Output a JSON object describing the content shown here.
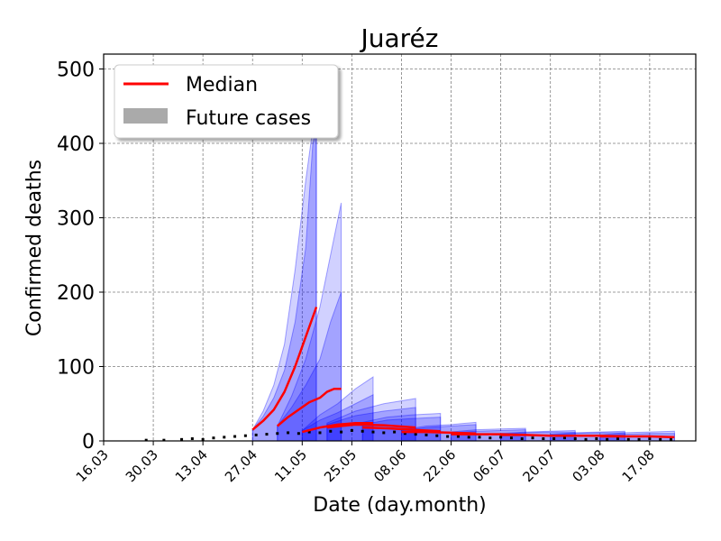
{
  "chart_data": {
    "type": "line",
    "title": "Juaréz",
    "xlabel": "Date (day.month)",
    "ylabel": "Confirmed deaths",
    "ylim": [
      0,
      520
    ],
    "xlim": [
      "2020-03-16",
      "2020-08-30"
    ],
    "x_ticks": [
      {
        "date": "2020-03-16",
        "label": "16.03"
      },
      {
        "date": "2020-03-30",
        "label": "30.03"
      },
      {
        "date": "2020-04-13",
        "label": "13.04"
      },
      {
        "date": "2020-04-27",
        "label": "27.04"
      },
      {
        "date": "2020-05-11",
        "label": "11.05"
      },
      {
        "date": "2020-05-25",
        "label": "25.05"
      },
      {
        "date": "2020-06-08",
        "label": "08.06"
      },
      {
        "date": "2020-06-22",
        "label": "22.06"
      },
      {
        "date": "2020-07-06",
        "label": "06.07"
      },
      {
        "date": "2020-07-20",
        "label": "20.07"
      },
      {
        "date": "2020-08-03",
        "label": "03.08"
      },
      {
        "date": "2020-08-17",
        "label": "17.08"
      }
    ],
    "y_ticks": [
      0,
      100,
      200,
      300,
      400,
      500
    ],
    "grid": true,
    "legend": {
      "position": "top-left",
      "entries": [
        {
          "label": "Median",
          "color": "#ff0000",
          "kind": "line"
        },
        {
          "label": "Future cases",
          "color": "#aaaaaa",
          "kind": "patch"
        }
      ]
    },
    "colors": {
      "median": "#ff0000",
      "band": "#0000ff",
      "observed": "#000000"
    },
    "forecasts": [
      {
        "start": "2020-04-27",
        "end": "2020-05-15",
        "median": [
          [
            0,
            15
          ],
          [
            3,
            27
          ],
          [
            6,
            42
          ],
          [
            9,
            66
          ],
          [
            12,
            100
          ],
          [
            15,
            140
          ],
          [
            18,
            180
          ]
        ],
        "inner": [
          [
            0,
            15
          ],
          [
            3,
            33
          ],
          [
            6,
            58
          ],
          [
            9,
            95
          ],
          [
            12,
            160
          ],
          [
            15,
            260
          ],
          [
            17,
            400
          ],
          [
            18,
            420
          ]
        ],
        "outer": [
          [
            0,
            15
          ],
          [
            3,
            40
          ],
          [
            6,
            75
          ],
          [
            9,
            130
          ],
          [
            12,
            230
          ],
          [
            15,
            350
          ],
          [
            17,
            420
          ],
          [
            18,
            420
          ]
        ]
      },
      {
        "start": "2020-05-04",
        "end": "2020-05-22",
        "median": [
          [
            0,
            20
          ],
          [
            3,
            32
          ],
          [
            6,
            42
          ],
          [
            9,
            52
          ],
          [
            12,
            58
          ],
          [
            14,
            66
          ],
          [
            16,
            70
          ],
          [
            18,
            70
          ]
        ],
        "inner": [
          [
            0,
            20
          ],
          [
            4,
            45
          ],
          [
            8,
            75
          ],
          [
            12,
            110
          ],
          [
            15,
            160
          ],
          [
            18,
            200
          ]
        ],
        "outer": [
          [
            0,
            20
          ],
          [
            4,
            60
          ],
          [
            8,
            110
          ],
          [
            12,
            180
          ],
          [
            15,
            250
          ],
          [
            18,
            320
          ]
        ]
      },
      {
        "start": "2020-05-11",
        "end": "2020-05-31",
        "median": [
          [
            0,
            12
          ],
          [
            5,
            18
          ],
          [
            10,
            22
          ],
          [
            15,
            24
          ],
          [
            20,
            24
          ]
        ],
        "inner": [
          [
            0,
            14
          ],
          [
            5,
            28
          ],
          [
            10,
            38
          ],
          [
            15,
            50
          ],
          [
            20,
            62
          ]
        ],
        "outer": [
          [
            0,
            14
          ],
          [
            5,
            35
          ],
          [
            10,
            50
          ],
          [
            15,
            70
          ],
          [
            20,
            86
          ]
        ]
      },
      {
        "start": "2020-05-18",
        "end": "2020-06-12",
        "median": [
          [
            0,
            18
          ],
          [
            8,
            22
          ],
          [
            16,
            21
          ],
          [
            25,
            18
          ]
        ],
        "inner": [
          [
            0,
            22
          ],
          [
            8,
            34
          ],
          [
            16,
            40
          ],
          [
            25,
            45
          ]
        ],
        "outer": [
          [
            0,
            24
          ],
          [
            8,
            40
          ],
          [
            16,
            50
          ],
          [
            25,
            57
          ]
        ]
      },
      {
        "start": "2020-05-28",
        "end": "2020-06-19",
        "median": [
          [
            0,
            18
          ],
          [
            7,
            17
          ],
          [
            14,
            15
          ],
          [
            22,
            13
          ]
        ],
        "inner": [
          [
            0,
            22
          ],
          [
            7,
            28
          ],
          [
            14,
            30
          ],
          [
            22,
            32
          ]
        ],
        "outer": [
          [
            0,
            25
          ],
          [
            7,
            32
          ],
          [
            14,
            35
          ],
          [
            22,
            37
          ]
        ]
      },
      {
        "start": "2020-06-08",
        "end": "2020-06-29",
        "median": [
          [
            0,
            12
          ],
          [
            7,
            12
          ],
          [
            14,
            11
          ],
          [
            21,
            10
          ]
        ],
        "inner": [
          [
            0,
            14
          ],
          [
            7,
            18
          ],
          [
            14,
            20
          ],
          [
            21,
            22
          ]
        ],
        "outer": [
          [
            0,
            15
          ],
          [
            7,
            20
          ],
          [
            14,
            22
          ],
          [
            21,
            25
          ]
        ]
      },
      {
        "start": "2020-06-22",
        "end": "2020-07-13",
        "median": [
          [
            0,
            9
          ],
          [
            7,
            9
          ],
          [
            14,
            9
          ],
          [
            21,
            8
          ]
        ],
        "inner": [
          [
            0,
            11
          ],
          [
            7,
            13
          ],
          [
            14,
            14
          ],
          [
            21,
            15
          ]
        ],
        "outer": [
          [
            0,
            12
          ],
          [
            7,
            15
          ],
          [
            14,
            16
          ],
          [
            21,
            17
          ]
        ]
      },
      {
        "start": "2020-07-06",
        "end": "2020-07-27",
        "median": [
          [
            0,
            8
          ],
          [
            7,
            8
          ],
          [
            14,
            7
          ],
          [
            21,
            7
          ]
        ],
        "inner": [
          [
            0,
            9
          ],
          [
            7,
            11
          ],
          [
            14,
            12
          ],
          [
            21,
            12
          ]
        ],
        "outer": [
          [
            0,
            10
          ],
          [
            7,
            12
          ],
          [
            14,
            13
          ],
          [
            21,
            14
          ]
        ]
      },
      {
        "start": "2020-07-20",
        "end": "2020-08-10",
        "median": [
          [
            0,
            7
          ],
          [
            7,
            7
          ],
          [
            14,
            7
          ],
          [
            21,
            6
          ]
        ],
        "inner": [
          [
            0,
            8
          ],
          [
            7,
            10
          ],
          [
            14,
            11
          ],
          [
            21,
            11
          ]
        ],
        "outer": [
          [
            0,
            9
          ],
          [
            7,
            11
          ],
          [
            14,
            12
          ],
          [
            21,
            13
          ]
        ]
      },
      {
        "start": "2020-08-03",
        "end": "2020-08-24",
        "median": [
          [
            0,
            6
          ],
          [
            7,
            6
          ],
          [
            14,
            6
          ],
          [
            21,
            5
          ]
        ],
        "inner": [
          [
            0,
            7
          ],
          [
            7,
            9
          ],
          [
            14,
            10
          ],
          [
            21,
            10
          ]
        ],
        "outer": [
          [
            0,
            8
          ],
          [
            7,
            11
          ],
          [
            14,
            12
          ],
          [
            21,
            13
          ]
        ]
      }
    ],
    "observed": [
      [
        "2020-03-28",
        1
      ],
      [
        "2020-04-02",
        1
      ],
      [
        "2020-04-07",
        2
      ],
      [
        "2020-04-10",
        3
      ],
      [
        "2020-04-13",
        2
      ],
      [
        "2020-04-16",
        4
      ],
      [
        "2020-04-19",
        5
      ],
      [
        "2020-04-22",
        6
      ],
      [
        "2020-04-25",
        7
      ],
      [
        "2020-04-28",
        8
      ],
      [
        "2020-05-01",
        9
      ],
      [
        "2020-05-04",
        10
      ],
      [
        "2020-05-07",
        11
      ],
      [
        "2020-05-10",
        10
      ],
      [
        "2020-05-13",
        12
      ],
      [
        "2020-05-16",
        11
      ],
      [
        "2020-05-19",
        13
      ],
      [
        "2020-05-22",
        12
      ],
      [
        "2020-05-25",
        14
      ],
      [
        "2020-05-28",
        13
      ],
      [
        "2020-05-31",
        12
      ],
      [
        "2020-06-03",
        11
      ],
      [
        "2020-06-06",
        12
      ],
      [
        "2020-06-09",
        10
      ],
      [
        "2020-06-12",
        9
      ],
      [
        "2020-06-15",
        8
      ],
      [
        "2020-06-18",
        7
      ],
      [
        "2020-06-21",
        6
      ],
      [
        "2020-06-24",
        6
      ],
      [
        "2020-06-27",
        5
      ],
      [
        "2020-06-30",
        5
      ],
      [
        "2020-07-03",
        4
      ],
      [
        "2020-07-06",
        5
      ],
      [
        "2020-07-09",
        4
      ],
      [
        "2020-07-12",
        3
      ],
      [
        "2020-07-15",
        4
      ],
      [
        "2020-07-18",
        3
      ],
      [
        "2020-07-21",
        3
      ],
      [
        "2020-07-24",
        4
      ],
      [
        "2020-07-27",
        3
      ],
      [
        "2020-07-30",
        2
      ],
      [
        "2020-08-02",
        3
      ],
      [
        "2020-08-05",
        2
      ],
      [
        "2020-08-08",
        3
      ],
      [
        "2020-08-11",
        2
      ],
      [
        "2020-08-14",
        2
      ],
      [
        "2020-08-17",
        3
      ],
      [
        "2020-08-20",
        2
      ],
      [
        "2020-08-23",
        2
      ]
    ]
  }
}
